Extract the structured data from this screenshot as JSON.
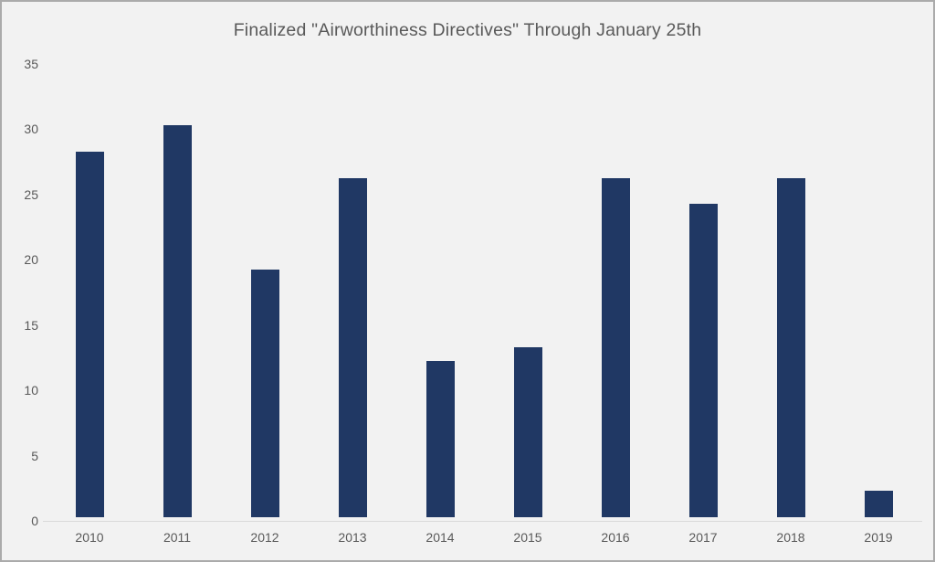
{
  "chart_data": {
    "type": "bar",
    "title": "Finalized \"Airworthiness Directives\" Through January 25th",
    "categories": [
      "2010",
      "2011",
      "2012",
      "2013",
      "2014",
      "2015",
      "2016",
      "2017",
      "2018",
      "2019"
    ],
    "values": [
      28,
      30,
      19,
      26,
      12,
      13,
      26,
      24,
      26,
      2
    ],
    "xlabel": "",
    "ylabel": "",
    "ylim": [
      0,
      35
    ],
    "y_ticks": [
      0,
      5,
      10,
      15,
      20,
      25,
      30,
      35
    ],
    "grid": false,
    "legend": false,
    "colors": {
      "bar": "#203864",
      "background": "#F2F2F2",
      "border": "#ABABAB",
      "axis_line": "#D9D9D9",
      "text": "#595959"
    }
  }
}
